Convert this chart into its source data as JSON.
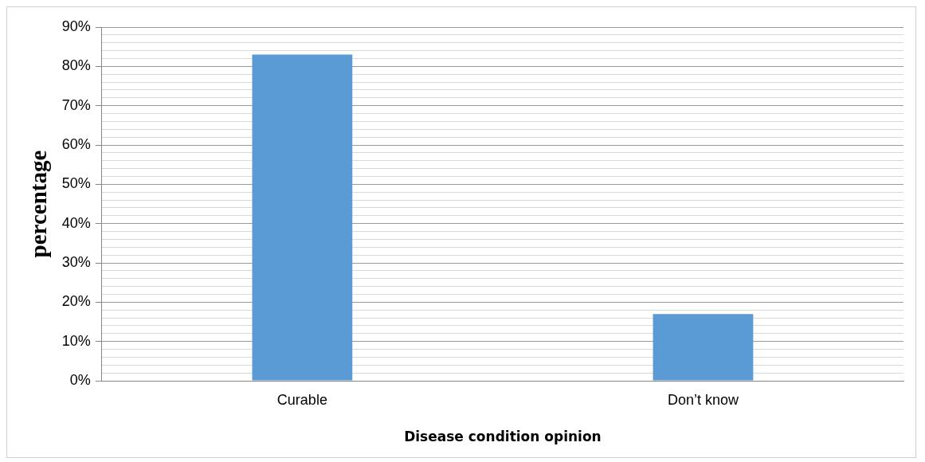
{
  "chart_data": {
    "type": "bar",
    "xlabel": "Disease condition opinion",
    "ylabel": "percentage",
    "categories": [
      "Curable",
      "Don’t know"
    ],
    "series": [
      {
        "color": "#5b9bd5",
        "values": [
          83,
          17
        ]
      }
    ],
    "ylim": [
      0,
      90
    ],
    "yticks": [
      {
        "value": 0,
        "label": "0%"
      },
      {
        "value": 2,
        "label": null
      },
      {
        "value": 4,
        "label": null
      },
      {
        "value": 6,
        "label": null
      },
      {
        "value": 8,
        "label": null
      },
      {
        "value": 10,
        "label": "10%"
      },
      {
        "value": 12,
        "label": null
      },
      {
        "value": 14,
        "label": null
      },
      {
        "value": 16,
        "label": null
      },
      {
        "value": 18,
        "label": null
      },
      {
        "value": 20,
        "label": "20%"
      },
      {
        "value": 22,
        "label": null
      },
      {
        "value": 24,
        "label": null
      },
      {
        "value": 26,
        "label": null
      },
      {
        "value": 28,
        "label": null
      },
      {
        "value": 30,
        "label": "30%"
      },
      {
        "value": 32,
        "label": null
      },
      {
        "value": 34,
        "label": null
      },
      {
        "value": 36,
        "label": null
      },
      {
        "value": 38,
        "label": null
      },
      {
        "value": 40,
        "label": "40%"
      },
      {
        "value": 42,
        "label": null
      },
      {
        "value": 44,
        "label": null
      },
      {
        "value": 46,
        "label": null
      },
      {
        "value": 48,
        "label": null
      },
      {
        "value": 50,
        "label": "50%"
      },
      {
        "value": 52,
        "label": null
      },
      {
        "value": 54,
        "label": null
      },
      {
        "value": 56,
        "label": null
      },
      {
        "value": 58,
        "label": null
      },
      {
        "value": 60,
        "label": "60%"
      },
      {
        "value": 62,
        "label": null
      },
      {
        "value": 64,
        "label": null
      },
      {
        "value": 66,
        "label": null
      },
      {
        "value": 68,
        "label": null
      },
      {
        "value": 70,
        "label": "70%"
      },
      {
        "value": 72,
        "label": null
      },
      {
        "value": 74,
        "label": null
      },
      {
        "value": 76,
        "label": null
      },
      {
        "value": 78,
        "label": null
      },
      {
        "value": 80,
        "label": "80%"
      },
      {
        "value": 82,
        "label": null
      },
      {
        "value": 84,
        "label": null
      },
      {
        "value": 86,
        "label": null
      },
      {
        "value": 88,
        "label": null
      },
      {
        "value": 90,
        "label": "90%"
      }
    ],
    "grid": "y",
    "legend": false
  }
}
